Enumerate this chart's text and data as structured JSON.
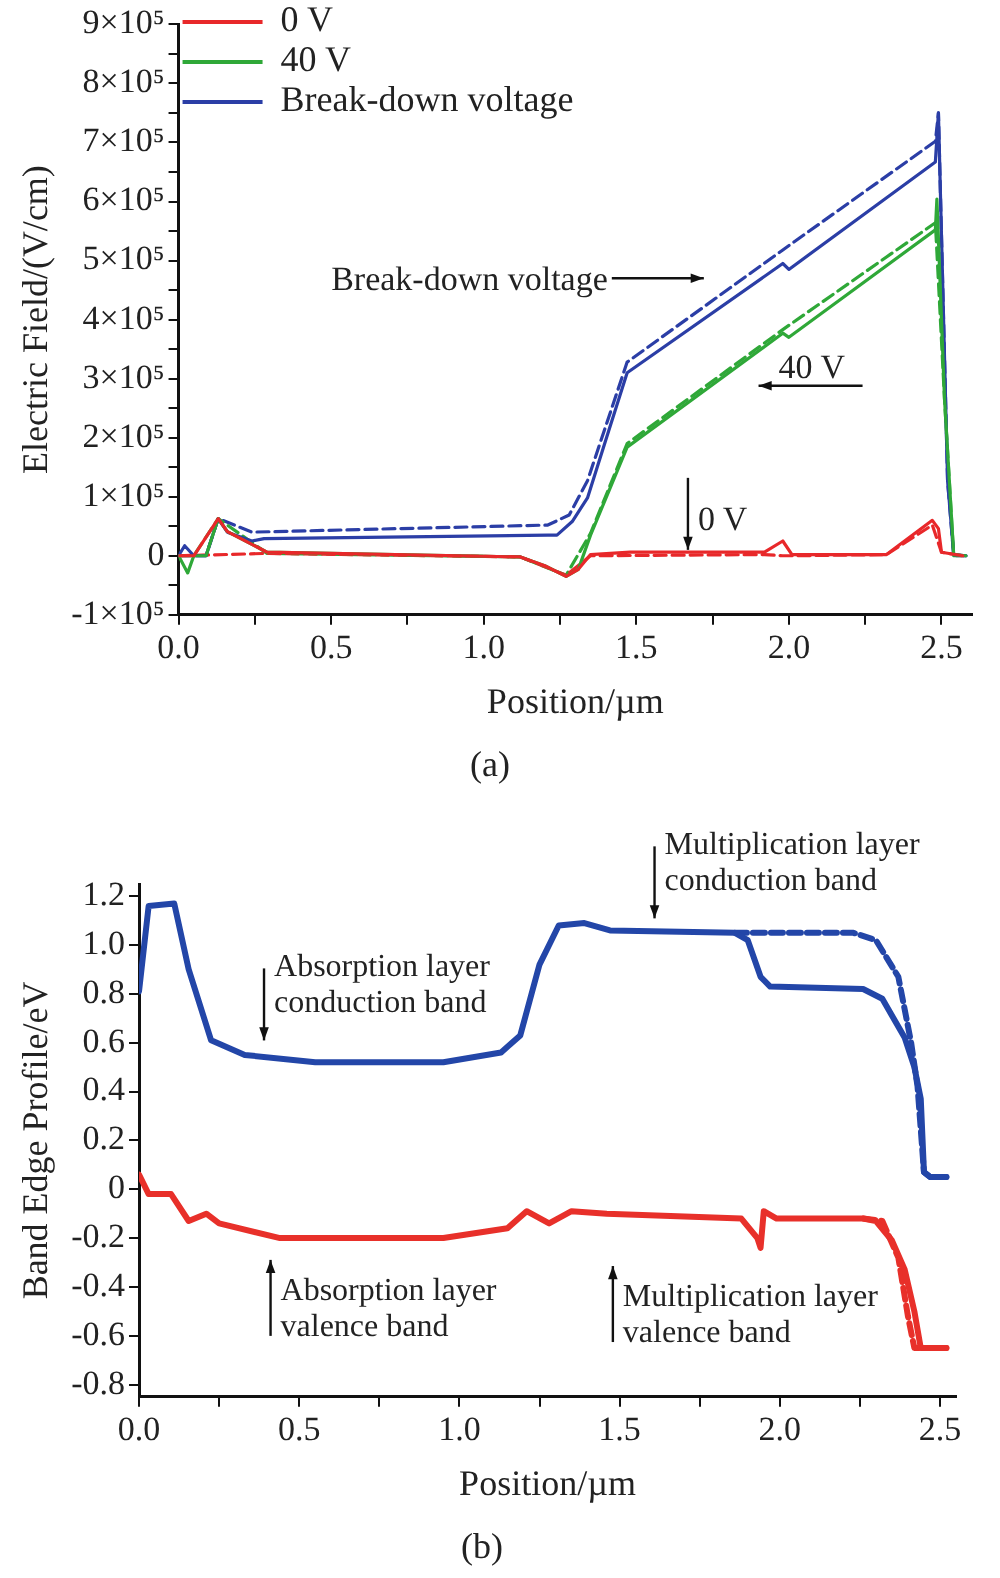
{
  "chart_data": [
    {
      "type": "line",
      "title": "(a)",
      "xlabel": "Position/µm",
      "ylabel": "Electric Field/(V/cm)",
      "xlim": [
        0,
        2.6
      ],
      "ylim": [
        -100000,
        900000
      ],
      "marker": "none",
      "legend": "top left",
      "xticks": [
        {
          "value": 0,
          "label": "0.0"
        },
        {
          "value": 0.25,
          "label": null
        },
        {
          "value": 0.5,
          "label": "0.5"
        },
        {
          "value": 0.75,
          "label": null
        },
        {
          "value": 1,
          "label": "1.0"
        },
        {
          "value": 1.25,
          "label": null
        },
        {
          "value": 1.5,
          "label": "1.5"
        },
        {
          "value": 1.75,
          "label": null
        },
        {
          "value": 2,
          "label": "2.0"
        },
        {
          "value": 2.25,
          "label": null
        },
        {
          "value": 2.5,
          "label": "2.5"
        }
      ],
      "yticks": [
        {
          "value": -100000,
          "label": "-1×10⁵"
        },
        {
          "value": -50000,
          "label": null
        },
        {
          "value": 0,
          "label": "0"
        },
        {
          "value": 50000,
          "label": null
        },
        {
          "value": 100000,
          "label": "1×10⁵"
        },
        {
          "value": 150000,
          "label": null
        },
        {
          "value": 200000,
          "label": "2×10⁵"
        },
        {
          "value": 250000,
          "label": null
        },
        {
          "value": 300000,
          "label": "3×10⁵"
        },
        {
          "value": 350000,
          "label": null
        },
        {
          "value": 400000,
          "label": "4×10⁵"
        },
        {
          "value": 450000,
          "label": null
        },
        {
          "value": 500000,
          "label": "5×10⁵"
        },
        {
          "value": 550000,
          "label": null
        },
        {
          "value": 600000,
          "label": "6×10⁵"
        },
        {
          "value": 650000,
          "label": null
        },
        {
          "value": 700000,
          "label": "7×10⁵"
        },
        {
          "value": 750000,
          "label": null
        },
        {
          "value": 800000,
          "label": "8×10⁵"
        },
        {
          "value": 850000,
          "label": null
        },
        {
          "value": 900000,
          "label": "9×10⁵"
        }
      ],
      "series": [
        {
          "name": "0 V",
          "color": "#e8282a",
          "line_style": "solid",
          "x": [
            0,
            0.05,
            0.13,
            0.16,
            0.29,
            1.12,
            1.2,
            1.27,
            1.31,
            1.35,
            1.48,
            1.92,
            1.98,
            2.01,
            2.32,
            2.47,
            2.49,
            2.5,
            2.57
          ],
          "values": [
            0,
            0,
            63000,
            41000,
            6000,
            -2000,
            -17000,
            -35000,
            -23000,
            2000,
            6000,
            6000,
            25000,
            2000,
            2000,
            60000,
            46000,
            6000,
            0
          ]
        },
        {
          "name": "40 V",
          "color": "#2fa838",
          "line_style": "solid",
          "x": [
            0,
            0.03,
            0.05,
            0.09,
            0.13,
            0.16,
            0.29,
            1.12,
            1.2,
            1.27,
            1.31,
            1.35,
            1.47,
            1.98,
            2,
            2.48,
            2.485,
            2.51,
            2.54,
            2.58
          ],
          "values": [
            0,
            -29000,
            0,
            0,
            63000,
            41000,
            6000,
            -2000,
            -17000,
            -35000,
            -23000,
            35000,
            184000,
            377000,
            370000,
            552000,
            604000,
            265000,
            2000,
            0
          ]
        },
        {
          "name": "Break-down voltage",
          "color": "#2b3ea6",
          "line_style": "solid",
          "x": [
            0,
            0.02,
            0.05,
            0.09,
            0.13,
            0.16,
            0.24,
            0.28,
            1.21,
            1.24,
            1.29,
            1.34,
            1.4,
            1.47,
            1.98,
            2,
            2.48,
            2.49,
            2.52,
            2.54,
            2.58
          ],
          "values": [
            0,
            17000,
            0,
            0,
            63000,
            40000,
            25000,
            29000,
            35000,
            35000,
            58000,
            98000,
            196000,
            310000,
            495000,
            485000,
            667000,
            750000,
            127000,
            2000,
            0
          ]
        },
        {
          "color": "#e8282a",
          "line_style": "dashed",
          "x": [
            0,
            0.29,
            1.12,
            1.27,
            1.35,
            1.92,
            1.98,
            2.01,
            2.32,
            2.47,
            2.5,
            2.57
          ],
          "values": [
            0,
            4000,
            -2000,
            -33000,
            0,
            2000,
            0,
            0,
            2000,
            52000,
            6000,
            0
          ]
        },
        {
          "color": "#2fa838",
          "line_style": "dashed",
          "x": [
            0,
            0.05,
            0.13,
            0.29,
            1.12,
            1.27,
            1.35,
            1.47,
            1.98,
            2.48,
            2.51,
            2.54,
            2.58
          ],
          "values": [
            0,
            0,
            63000,
            4000,
            -2000,
            -33000,
            38000,
            190000,
            383000,
            564000,
            265000,
            0,
            0
          ]
        },
        {
          "color": "#2b3ea6",
          "line_style": "dashed",
          "x": [
            0,
            0.05,
            0.09,
            0.13,
            0.24,
            1.21,
            1.28,
            1.34,
            1.47,
            1.98,
            2.48,
            2.49,
            2.52,
            2.54,
            2.58
          ],
          "values": [
            0,
            0,
            0,
            63000,
            40000,
            52000,
            69000,
            127000,
            328000,
            518000,
            702000,
            750000,
            127000,
            0,
            0
          ]
        }
      ],
      "annotations": [
        "Break-down voltage",
        "40 V",
        "0 V"
      ]
    },
    {
      "type": "line",
      "title": "(b)",
      "xlabel": "Position/µm",
      "ylabel": "Band Edge Profile/eV",
      "xlim": [
        0,
        2.55
      ],
      "ylim": [
        -0.85,
        1.25
      ],
      "marker": "none",
      "xticks": [
        {
          "value": 0,
          "label": "0.0"
        },
        {
          "value": 0.25,
          "label": null
        },
        {
          "value": 0.5,
          "label": "0.5"
        },
        {
          "value": 0.75,
          "label": null
        },
        {
          "value": 1,
          "label": "1.0"
        },
        {
          "value": 1.25,
          "label": null
        },
        {
          "value": 1.5,
          "label": "1.5"
        },
        {
          "value": 1.75,
          "label": null
        },
        {
          "value": 2,
          "label": "2.0"
        },
        {
          "value": 2.25,
          "label": null
        },
        {
          "value": 2.5,
          "label": "2.5"
        }
      ],
      "yticks": [
        -0.8,
        -0.6,
        -0.4,
        -0.2,
        0,
        0.2,
        0.4,
        0.6,
        0.8,
        {
          "value": 1,
          "label": "1.0"
        },
        1.2
      ],
      "series": [
        {
          "color": "#2346a8",
          "line_style": "solid",
          "x": [
            0,
            0.03,
            0.11,
            0.155,
            0.225,
            0.33,
            0.55,
            0.95,
            1.13,
            1.19,
            1.25,
            1.31,
            1.39,
            1.47,
            1.86,
            1.9,
            1.94,
            1.97,
            2.26,
            2.32,
            2.39,
            2.42,
            2.44,
            2.45,
            2.47,
            2.52
          ],
          "values": [
            0.81,
            1.16,
            1.17,
            0.9,
            0.61,
            0.55,
            0.52,
            0.52,
            0.56,
            0.63,
            0.92,
            1.08,
            1.09,
            1.06,
            1.05,
            1.02,
            0.87,
            0.83,
            0.82,
            0.78,
            0.62,
            0.5,
            0.37,
            0.07,
            0.05,
            0.05
          ]
        },
        {
          "color": "#2346a8",
          "line_style": "dashed",
          "x": [
            1.86,
            2.23,
            2.3,
            2.37,
            2.41,
            2.43,
            2.45,
            2.47,
            2.52
          ],
          "values": [
            1.05,
            1.05,
            1.02,
            0.87,
            0.6,
            0.42,
            0.07,
            0.05,
            0.05
          ]
        },
        {
          "color": "#e8302a",
          "line_style": "solid",
          "x": [
            0,
            0.03,
            0.1,
            0.155,
            0.21,
            0.25,
            0.44,
            0.95,
            1.15,
            1.21,
            1.28,
            1.35,
            1.46,
            1.88,
            1.93,
            1.94,
            1.95,
            1.99,
            2.26,
            2.3,
            2.35,
            2.39,
            2.42,
            2.44,
            2.46,
            2.52
          ],
          "values": [
            0.06,
            -0.02,
            -0.02,
            -0.13,
            -0.1,
            -0.14,
            -0.2,
            -0.2,
            -0.16,
            -0.09,
            -0.14,
            -0.09,
            -0.1,
            -0.12,
            -0.2,
            -0.24,
            -0.09,
            -0.12,
            -0.12,
            -0.13,
            -0.21,
            -0.33,
            -0.5,
            -0.65,
            -0.65,
            -0.65
          ]
        },
        {
          "color": "#e8302a",
          "line_style": "dashed",
          "x": [
            2.26,
            2.32,
            2.37,
            2.4,
            2.42,
            2.52
          ],
          "values": [
            -0.12,
            -0.13,
            -0.28,
            -0.52,
            -0.65,
            -0.65
          ]
        }
      ],
      "annotations": [
        "Absorption layer\nconduction band",
        "Multiplication layer\nconduction band",
        "Absorption layer\nvalence band",
        "Multiplication layer\nvalence band"
      ]
    }
  ]
}
